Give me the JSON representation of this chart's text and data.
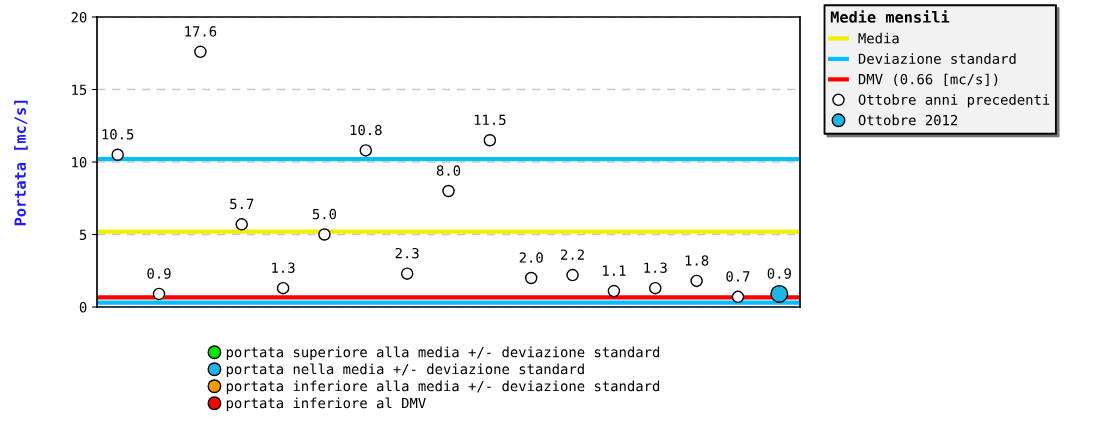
{
  "chart_data": {
    "type": "scatter",
    "ylabel": "Portata [mc/s]",
    "legend_title": "Medie mensili",
    "categories": [
      null,
      null,
      null,
      null,
      null,
      null,
      null,
      null,
      null,
      null,
      null,
      null,
      null,
      null,
      null,
      null,
      null
    ],
    "ylim": [
      0,
      20
    ],
    "yticks": [
      0,
      5,
      10,
      15,
      20
    ],
    "grid": "y",
    "legend": "right",
    "series": [
      {
        "name": "Ottobre anni precedenti",
        "color": "#ffffff",
        "marker": "circle",
        "values": [
          10.5,
          0.9,
          17.6,
          5.7,
          1.3,
          5.0,
          10.8,
          2.3,
          8.0,
          11.5,
          2.0,
          2.2,
          1.1,
          1.3,
          1.8,
          0.7,
          null
        ],
        "value_labels": [
          "10.5",
          "0.9",
          "17.6",
          "5.7",
          "1.3",
          "5.0",
          "10.8",
          "2.3",
          "8.0",
          "11.5",
          "2.0",
          "2.2",
          "1.1",
          "1.3",
          "1.8",
          "0.7",
          null
        ]
      },
      {
        "name": "Ottobre 2012",
        "color": "#1eb4e6",
        "marker": "circle",
        "values": [
          null,
          null,
          null,
          null,
          null,
          null,
          null,
          null,
          null,
          null,
          null,
          null,
          null,
          null,
          null,
          null,
          0.9
        ],
        "value_labels": [
          null,
          null,
          null,
          null,
          null,
          null,
          null,
          null,
          null,
          null,
          null,
          null,
          null,
          null,
          null,
          null,
          "0.9"
        ]
      },
      {
        "name": "portata superiore alla media +/- deviazione standard",
        "color": "#00e600",
        "marker": "circle",
        "values": [
          null,
          null,
          null,
          null,
          null,
          null,
          null,
          null,
          null,
          null,
          null,
          null,
          null,
          null,
          null,
          null,
          null
        ]
      },
      {
        "name": "portata nella media +/- deviazione standard",
        "color": "#1eb4e6",
        "marker": "circle",
        "values": [
          null,
          null,
          null,
          null,
          null,
          null,
          null,
          null,
          null,
          null,
          null,
          null,
          null,
          null,
          null,
          null,
          null
        ]
      },
      {
        "name": "portata inferiore alla media +/- deviazione standard",
        "color": "#ff9900",
        "marker": "circle",
        "values": [
          null,
          null,
          null,
          null,
          null,
          null,
          null,
          null,
          null,
          null,
          null,
          null,
          null,
          null,
          null,
          null,
          null
        ]
      },
      {
        "name": "portata inferiore al DMV",
        "color": "#ff0000",
        "marker": "circle",
        "values": [
          null,
          null,
          null,
          null,
          null,
          null,
          null,
          null,
          null,
          null,
          null,
          null,
          null,
          null,
          null,
          null,
          null
        ]
      }
    ],
    "ref_lines": [
      {
        "axis": "y",
        "value": 5.2,
        "label": "Media",
        "color": "#f0f000"
      },
      {
        "axis": "y",
        "value": 10.2,
        "label": "Deviazione standard",
        "color": "#00bfff"
      },
      {
        "axis": "y",
        "value": 0.3,
        "label": null,
        "color": "#00bfff"
      },
      {
        "axis": "y",
        "value": 0.66,
        "label": "DMV (0.66 [mc/s])",
        "color": "#ff0000"
      }
    ]
  }
}
